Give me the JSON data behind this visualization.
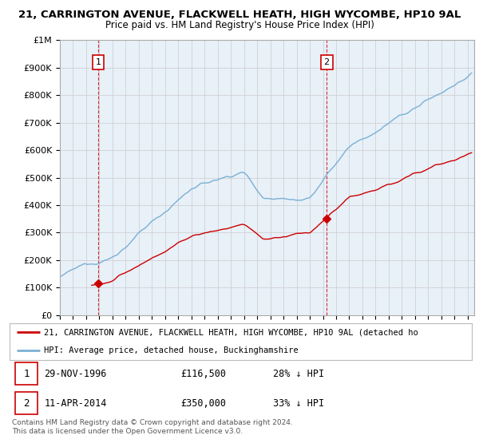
{
  "title1": "21, CARRINGTON AVENUE, FLACKWELL HEATH, HIGH WYCOMBE, HP10 9AL",
  "title2": "Price paid vs. HM Land Registry's House Price Index (HPI)",
  "ylabel_ticks": [
    "£0",
    "£100K",
    "£200K",
    "£300K",
    "£400K",
    "£500K",
    "£600K",
    "£700K",
    "£800K",
    "£900K",
    "£1M"
  ],
  "ylim": [
    0,
    1000000
  ],
  "xlim_start": 1994.0,
  "xlim_end": 2025.5,
  "hpi_color": "#7ab0d4",
  "price_color": "#cc0000",
  "point1_date": 1996.91,
  "point1_value": 116500,
  "point1_label": "1",
  "point2_date": 2014.28,
  "point2_value": 350000,
  "point2_label": "2",
  "legend_line1": "21, CARRINGTON AVENUE, FLACKWELL HEATH, HIGH WYCOMBE, HP10 9AL (detached ho",
  "legend_line2": "HPI: Average price, detached house, Buckinghamshire",
  "table_row1": [
    "1",
    "29-NOV-1996",
    "£116,500",
    "28% ↓ HPI"
  ],
  "table_row2": [
    "2",
    "11-APR-2014",
    "£350,000",
    "33% ↓ HPI"
  ],
  "footer": "Contains HM Land Registry data © Crown copyright and database right 2024.\nThis data is licensed under the Open Government Licence v3.0.",
  "background_color": "#ffffff",
  "grid_color": "#cccccc",
  "bg_fill_color": "#e8f0f8"
}
